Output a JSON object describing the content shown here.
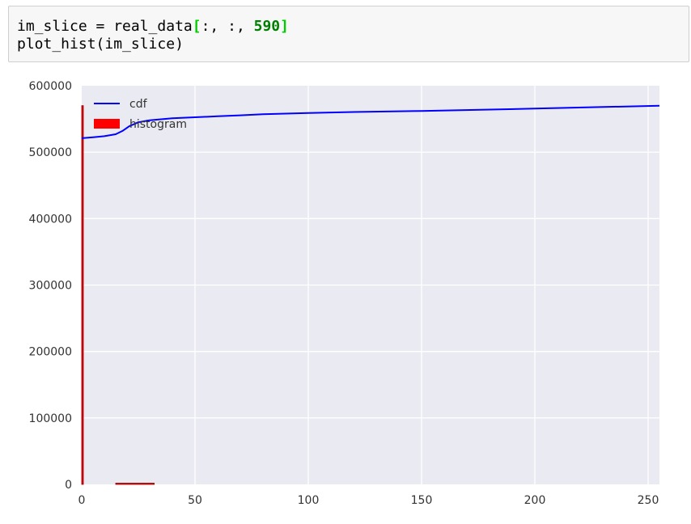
{
  "code_cell": {
    "line1_prefix": "im_slice = real_data",
    "line1_bracket_open": "[",
    "line1_middle": ":, :, ",
    "line1_number": "590",
    "line1_bracket_close": "]",
    "line2": "plot_hist(im_slice)"
  },
  "colors": {
    "cell_background": "#f7f7f7",
    "cell_border": "#cfcfcf",
    "plot_background": "#eaeaf2",
    "grid": "#ffffff",
    "cdf_line": "#0000ff",
    "histogram": "#ff0000",
    "bracket_green": "#00cc00",
    "number_green": "#008000"
  },
  "chart_data": {
    "type": "line",
    "title": "",
    "xlabel": "",
    "ylabel": "",
    "xlim": [
      0,
      255
    ],
    "ylim": [
      0,
      600000
    ],
    "xticks": [
      0,
      50,
      100,
      150,
      200,
      250
    ],
    "xtick_labels": [
      "0",
      "50",
      "100",
      "150",
      "200",
      "250"
    ],
    "yticks": [
      0,
      100000,
      200000,
      300000,
      400000,
      500000,
      600000
    ],
    "ytick_labels": [
      "0",
      "100000",
      "200000",
      "300000",
      "400000",
      "500000",
      "600000"
    ],
    "grid": true,
    "legend_position": "top-left",
    "legend": [
      {
        "label": "cdf",
        "kind": "line",
        "color": "#0000ff"
      },
      {
        "label": "histogram",
        "kind": "patch",
        "color": "#ff0000"
      }
    ],
    "series": [
      {
        "name": "cdf",
        "kind": "line",
        "color": "#0000ff",
        "x": [
          0,
          5,
          10,
          15,
          18,
          21,
          25,
          30,
          40,
          50,
          60,
          70,
          80,
          100,
          120,
          150,
          200,
          255
        ],
        "y": [
          521000,
          522500,
          524000,
          527000,
          532000,
          539000,
          545000,
          548000,
          551000,
          552500,
          554000,
          555500,
          557000,
          559000,
          560500,
          562000,
          565500,
          570000
        ]
      },
      {
        "name": "histogram",
        "kind": "bar",
        "color": "#ff0000",
        "bins": [
          {
            "x0": 0,
            "x1": 0.7,
            "value": 570000
          },
          {
            "x0": 15,
            "x1": 32,
            "value": 1500
          }
        ]
      }
    ]
  }
}
